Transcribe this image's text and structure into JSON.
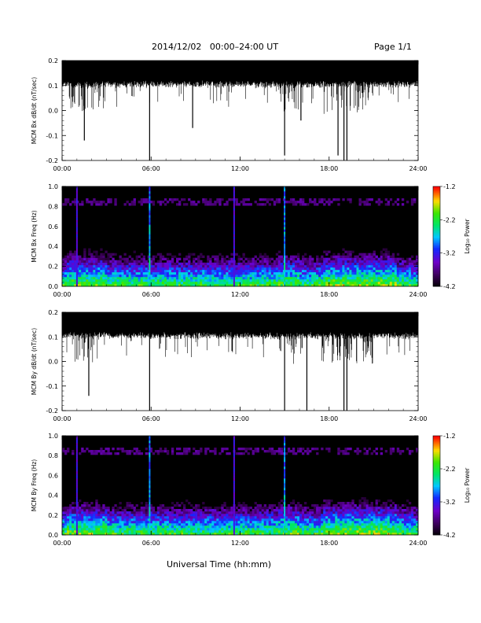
{
  "header": {
    "title": "2014/12/02   00:00–24:00 UT",
    "page": "Page 1/1"
  },
  "xlabel": "Universal Time (hh:mm)",
  "xticks": [
    "00:00",
    "06:00",
    "12:00",
    "18:00",
    "24:00"
  ],
  "colorbar": {
    "label": "Log₁₀ Power",
    "ticks": [
      "-1.2",
      "-2.2",
      "-3.2",
      "-4.2"
    ],
    "range": [
      -4.2,
      -1.2
    ]
  },
  "chart_data": [
    {
      "type": "line",
      "ylabel": "MCM Bx dB/dt (nT/sec)",
      "xlim": [
        0,
        24
      ],
      "ylim": [
        -0.2,
        0.2
      ],
      "yticks": [
        "0.2",
        "0.1",
        "0.0",
        "-0.1",
        "-0.2"
      ],
      "baseline_band": [
        0.12,
        0.2
      ],
      "dips": [
        {
          "x": 1.5,
          "y": -0.12
        },
        {
          "x": 5.9,
          "y": -0.2
        },
        {
          "x": 8.8,
          "y": -0.07
        },
        {
          "x": 15.0,
          "y": -0.18
        },
        {
          "x": 16.1,
          "y": -0.04
        },
        {
          "x": 18.6,
          "y": -0.18
        },
        {
          "x": 19.0,
          "y": -0.2
        },
        {
          "x": 19.2,
          "y": -0.2
        }
      ]
    },
    {
      "type": "heatmap",
      "ylabel": "MCM Bx Freq (Hz)",
      "xlim": [
        0,
        24
      ],
      "ylim": [
        0.0,
        1.0
      ],
      "yticks": [
        "1.0",
        "0.8",
        "0.6",
        "0.4",
        "0.2",
        "0.0"
      ],
      "zlim": [
        -4.2,
        -1.2
      ],
      "vertical_features": [
        1.0,
        5.9,
        11.6,
        15.0
      ]
    },
    {
      "type": "line",
      "ylabel": "MCM By dB/dt (nT/sec)",
      "xlim": [
        0,
        24
      ],
      "ylim": [
        -0.2,
        0.2
      ],
      "yticks": [
        "0.2",
        "0.1",
        "0.0",
        "-0.1",
        "-0.2"
      ],
      "baseline_band": [
        0.12,
        0.2
      ],
      "dips": [
        {
          "x": 1.8,
          "y": -0.14
        },
        {
          "x": 5.9,
          "y": -0.2
        },
        {
          "x": 15.0,
          "y": -0.2
        },
        {
          "x": 16.5,
          "y": -0.2
        },
        {
          "x": 19.0,
          "y": -0.2
        },
        {
          "x": 19.2,
          "y": -0.2
        }
      ]
    },
    {
      "type": "heatmap",
      "ylabel": "MCM By Freq (Hz)",
      "xlim": [
        0,
        24
      ],
      "ylim": [
        0.0,
        1.0
      ],
      "yticks": [
        "1.0",
        "0.8",
        "0.6",
        "0.4",
        "0.2",
        "0.0"
      ],
      "zlim": [
        -4.2,
        -1.2
      ],
      "vertical_features": [
        1.0,
        5.9,
        11.6,
        15.0
      ]
    }
  ]
}
